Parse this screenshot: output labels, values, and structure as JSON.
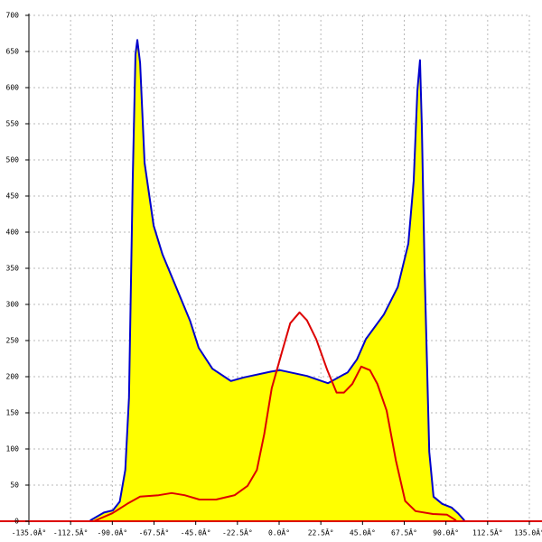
{
  "chart_data": {
    "type": "area",
    "xlim": [
      -135,
      135
    ],
    "ylim": [
      0,
      700
    ],
    "xticks": [
      {
        "value": -135,
        "label": "-135.0Â°"
      },
      {
        "value": -112.5,
        "label": "-112.5Â°"
      },
      {
        "value": -90,
        "label": "-90.0Â°"
      },
      {
        "value": -67.5,
        "label": "-67.5Â°"
      },
      {
        "value": -45,
        "label": "-45.0Â°"
      },
      {
        "value": -22.5,
        "label": "-22.5Â°"
      },
      {
        "value": 0,
        "label": "0.0Â°"
      },
      {
        "value": 22.5,
        "label": "22.5Â°"
      },
      {
        "value": 45,
        "label": "45.0Â°"
      },
      {
        "value": 67.5,
        "label": "67.5Â°"
      },
      {
        "value": 90,
        "label": "90.0Â°"
      },
      {
        "value": 112.5,
        "label": "112.5Â°"
      },
      {
        "value": 135,
        "label": "135.0Â°"
      }
    ],
    "yticks": [
      0,
      50,
      100,
      150,
      200,
      250,
      300,
      350,
      400,
      450,
      500,
      550,
      600,
      650,
      700
    ],
    "grid": true,
    "series": [
      {
        "color": "#0000cc",
        "fill": "#ffff00",
        "x": [
          -102,
          -94.5,
          -89.7,
          -86,
          -83,
          -81,
          -79,
          -77.5,
          -76.5,
          -75,
          -72.6,
          -67.7,
          -62.9,
          -55.6,
          -48,
          -43.4,
          -36,
          -26,
          -19,
          -4.4,
          0.5,
          15,
          26.3,
          37,
          42,
          46.8,
          56.5,
          64,
          69.7,
          72.6,
          74.6,
          76,
          77,
          78.5,
          81,
          83.3,
          88,
          93,
          96.5,
          100
        ],
        "values": [
          1,
          12,
          15,
          27,
          71,
          171,
          471,
          646,
          666,
          634,
          496,
          409,
          369,
          324,
          277,
          240,
          211,
          194,
          199,
          207,
          209,
          201,
          191,
          206,
          224,
          252,
          286,
          324,
          384,
          471,
          596,
          638,
          546,
          346,
          96,
          34,
          24,
          19,
          11,
          1
        ]
      },
      {
        "color": "#dd0000",
        "x": [
          -100,
          -90,
          -82,
          -75,
          -65,
          -58,
          -51,
          -43,
          -34,
          -24,
          -17,
          -12,
          -8,
          -4,
          1.5,
          6,
          11,
          15,
          20,
          26,
          31,
          35,
          39.5,
          44.3,
          49,
          53,
          58,
          63,
          68,
          73.6,
          83,
          90.6,
          95.5
        ],
        "values": [
          0,
          11,
          24,
          34,
          36,
          39,
          36,
          30,
          30,
          36,
          49,
          71,
          121,
          184,
          234,
          274,
          289,
          278,
          252,
          209,
          178,
          178,
          190,
          214,
          209,
          190,
          153,
          84,
          28,
          14,
          10,
          9,
          1
        ]
      }
    ]
  }
}
